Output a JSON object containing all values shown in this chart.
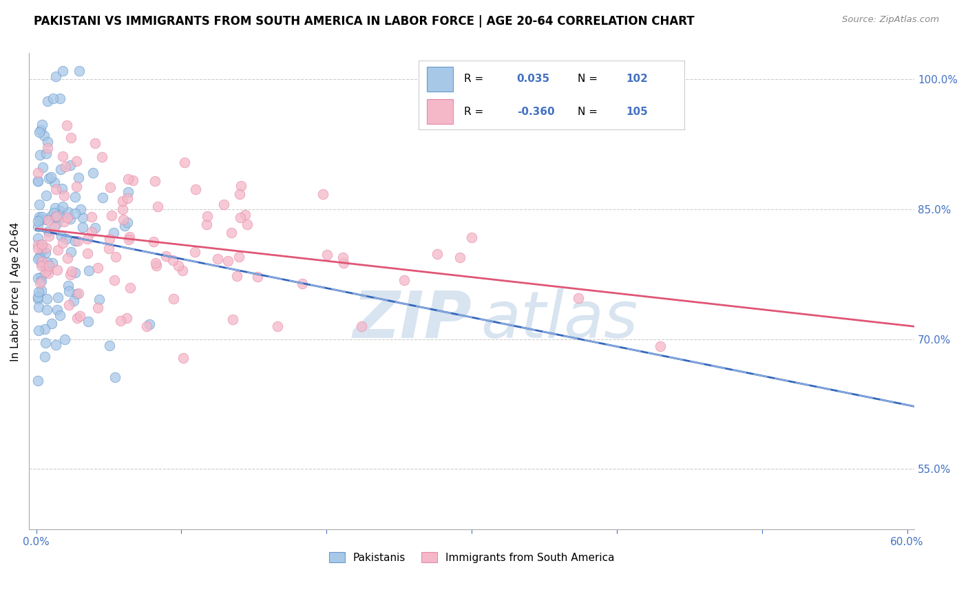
{
  "title": "PAKISTANI VS IMMIGRANTS FROM SOUTH AMERICA IN LABOR FORCE | AGE 20-64 CORRELATION CHART",
  "source": "Source: ZipAtlas.com",
  "ylabel": "In Labor Force | Age 20-64",
  "xlim": [
    -0.005,
    0.605
  ],
  "ylim": [
    0.48,
    1.03
  ],
  "xtick_vals": [
    0.0,
    0.1,
    0.2,
    0.3,
    0.4,
    0.5,
    0.6
  ],
  "xtick_labels": [
    "0.0%",
    "",
    "",
    "",
    "",
    "",
    "60.0%"
  ],
  "ytick_values": [
    1.0,
    0.85,
    0.7,
    0.55
  ],
  "ytick_labels": [
    "100.0%",
    "85.0%",
    "70.0%",
    "55.0%"
  ],
  "blue_color": "#a8c8e8",
  "pink_color": "#f4b8c8",
  "blue_edge_color": "#6699cc",
  "pink_edge_color": "#e888aa",
  "blue_line_color": "#3366bb",
  "pink_line_color": "#e05575",
  "blue_dash_color": "#88aadd",
  "R_blue": 0.035,
  "N_blue": 102,
  "R_pink": -0.36,
  "N_pink": 105,
  "legend_labels": [
    "Pakistanis",
    "Immigrants from South America"
  ],
  "watermark_zip": "ZIP",
  "watermark_atlas": "atlas",
  "title_fontsize": 12,
  "axis_color": "#4472c4",
  "grid_color": "#cccccc",
  "blue_seed": 42,
  "pink_seed": 99
}
